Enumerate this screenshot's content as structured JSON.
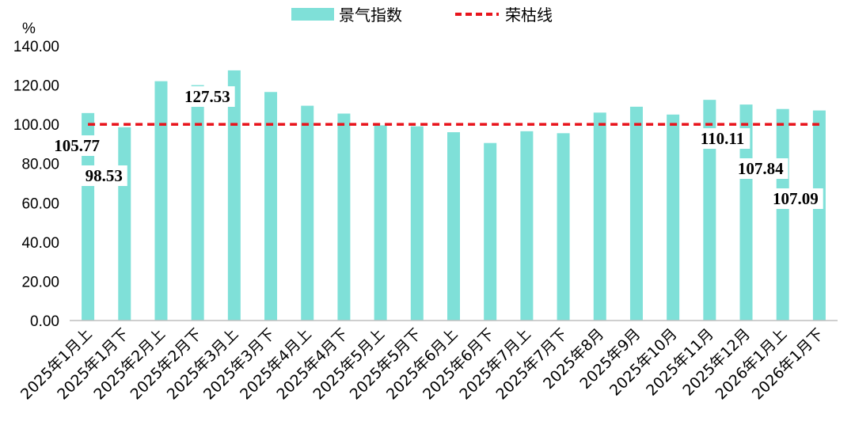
{
  "chart_data": {
    "type": "bar",
    "unit": "%",
    "ylim": [
      0,
      140
    ],
    "yticks": [
      "0.00",
      "20.00",
      "40.00",
      "60.00",
      "80.00",
      "100.00",
      "120.00",
      "140.00"
    ],
    "categories": [
      "2025年1月上",
      "2025年1月下",
      "2025年2月上",
      "2025年2月下",
      "2025年3月上",
      "2025年3月下",
      "2025年4月上",
      "2025年4月下",
      "2025年5月上",
      "2025年5月下",
      "2025年6月上",
      "2025年6月下",
      "2025年7月上",
      "2025年7月下",
      "2025年8月",
      "2025年9月",
      "2025年10月",
      "2025年11月",
      "2025年12月",
      "2026年1月上",
      "2026年1月下"
    ],
    "series": [
      {
        "name": "景气指数",
        "color": "#7fe0d8",
        "values": [
          105.77,
          98.53,
          122.0,
          120.0,
          127.53,
          116.5,
          109.5,
          105.5,
          99.5,
          99.0,
          96.0,
          90.5,
          96.5,
          95.5,
          106.0,
          109.0,
          105.0,
          112.5,
          110.11,
          107.84,
          107.09
        ]
      },
      {
        "name": "荣枯线",
        "color": "#e8141c",
        "style": "dashed",
        "value": 100
      }
    ],
    "data_labels": [
      {
        "index": 0,
        "text": "105.77"
      },
      {
        "index": 1,
        "text": "98.53"
      },
      {
        "index": 4,
        "text": "127.53"
      },
      {
        "index": 18,
        "text": "110.11"
      },
      {
        "index": 19,
        "text": "107.84"
      },
      {
        "index": 20,
        "text": "107.09"
      }
    ],
    "legend": "top-center",
    "grid": false
  }
}
